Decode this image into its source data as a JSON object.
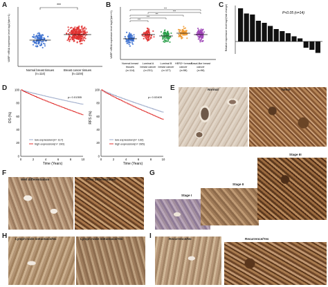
{
  "panels": {
    "A": "A",
    "B": "B",
    "C": "C",
    "D": "D",
    "E": "E",
    "F": "F",
    "G": "G",
    "H": "H",
    "I": "I"
  },
  "panel_A": {
    "ylabel": "VARP mRNA expression level log2(fpkm+1)",
    "sig": "***",
    "groups": [
      {
        "name": "Normal breast tissues",
        "n": "(n=114)",
        "color": "#3a6fd0"
      },
      {
        "name": "Breast cancer tissues",
        "n": "(n=1104)",
        "color": "#e0302f"
      }
    ]
  },
  "panel_B": {
    "ylabel": "VARP mRNA expression level log2(fpkm+1)",
    "sigs": [
      "***",
      "***",
      "***",
      "***",
      "***"
    ],
    "groups": [
      {
        "name": "Normal breast tissues",
        "n": "(n=114)",
        "color": "#3a6fd0"
      },
      {
        "name": "Luminal A breast cancer",
        "n": "(n=231)",
        "color": "#e0302f"
      },
      {
        "name": "Luminal B breast cancer",
        "n": "(n=127)",
        "color": "#2aa04a"
      },
      {
        "name": "HER2+ breast cancer",
        "n": "(n=58)",
        "color": "#f09a30"
      },
      {
        "name": "Basal-like breast cancer",
        "n": "(n=98)",
        "color": "#9b3fb5"
      }
    ]
  },
  "panel_C": {
    "ylabel": "Relative expression level log2(fold change)",
    "annotation": "P<0.05 (n=14)",
    "values": [
      3.2,
      2.7,
      2.6,
      2.0,
      1.8,
      1.5,
      1.2,
      1.0,
      0.8,
      0.5,
      0.3,
      -0.6,
      -0.8,
      -1.1
    ]
  },
  "panel_D": {
    "os": {
      "ylabel": "OS (%)",
      "xlabel": "Time (Years)",
      "p": "p= 0.01355",
      "legend_low": "low expression(n= 117)",
      "legend_high": "high expression(n= 190)"
    },
    "rfs": {
      "ylabel": "RFS (%)",
      "xlabel": "Time (Years)",
      "p": "p= 0.02409",
      "legend_low": "low expression(n= 132)",
      "legend_high": "high expression(n= 285)"
    },
    "xticks": [
      "0",
      "2",
      "4",
      "6",
      "8",
      "10"
    ],
    "yticks": [
      "0",
      "20",
      "40",
      "60",
      "80",
      "100"
    ],
    "low_color": "#9aa8c8",
    "high_color": "#e0302f"
  },
  "panel_E": {
    "left": "Normal",
    "right": "Tumor"
  },
  "panel_F": {
    "left": "Well differentiation",
    "right": "Poor differentiation"
  },
  "panel_G": {
    "s1": "Stage I",
    "s2": "Stage II",
    "s3": "Stage III"
  },
  "panel_H": {
    "left": "Lymph node metastasis/No",
    "right": "Lymph node metastasis/Yes"
  },
  "panel_I": {
    "left": "Recurrence/No",
    "right": "Recurrence/Yes"
  }
}
